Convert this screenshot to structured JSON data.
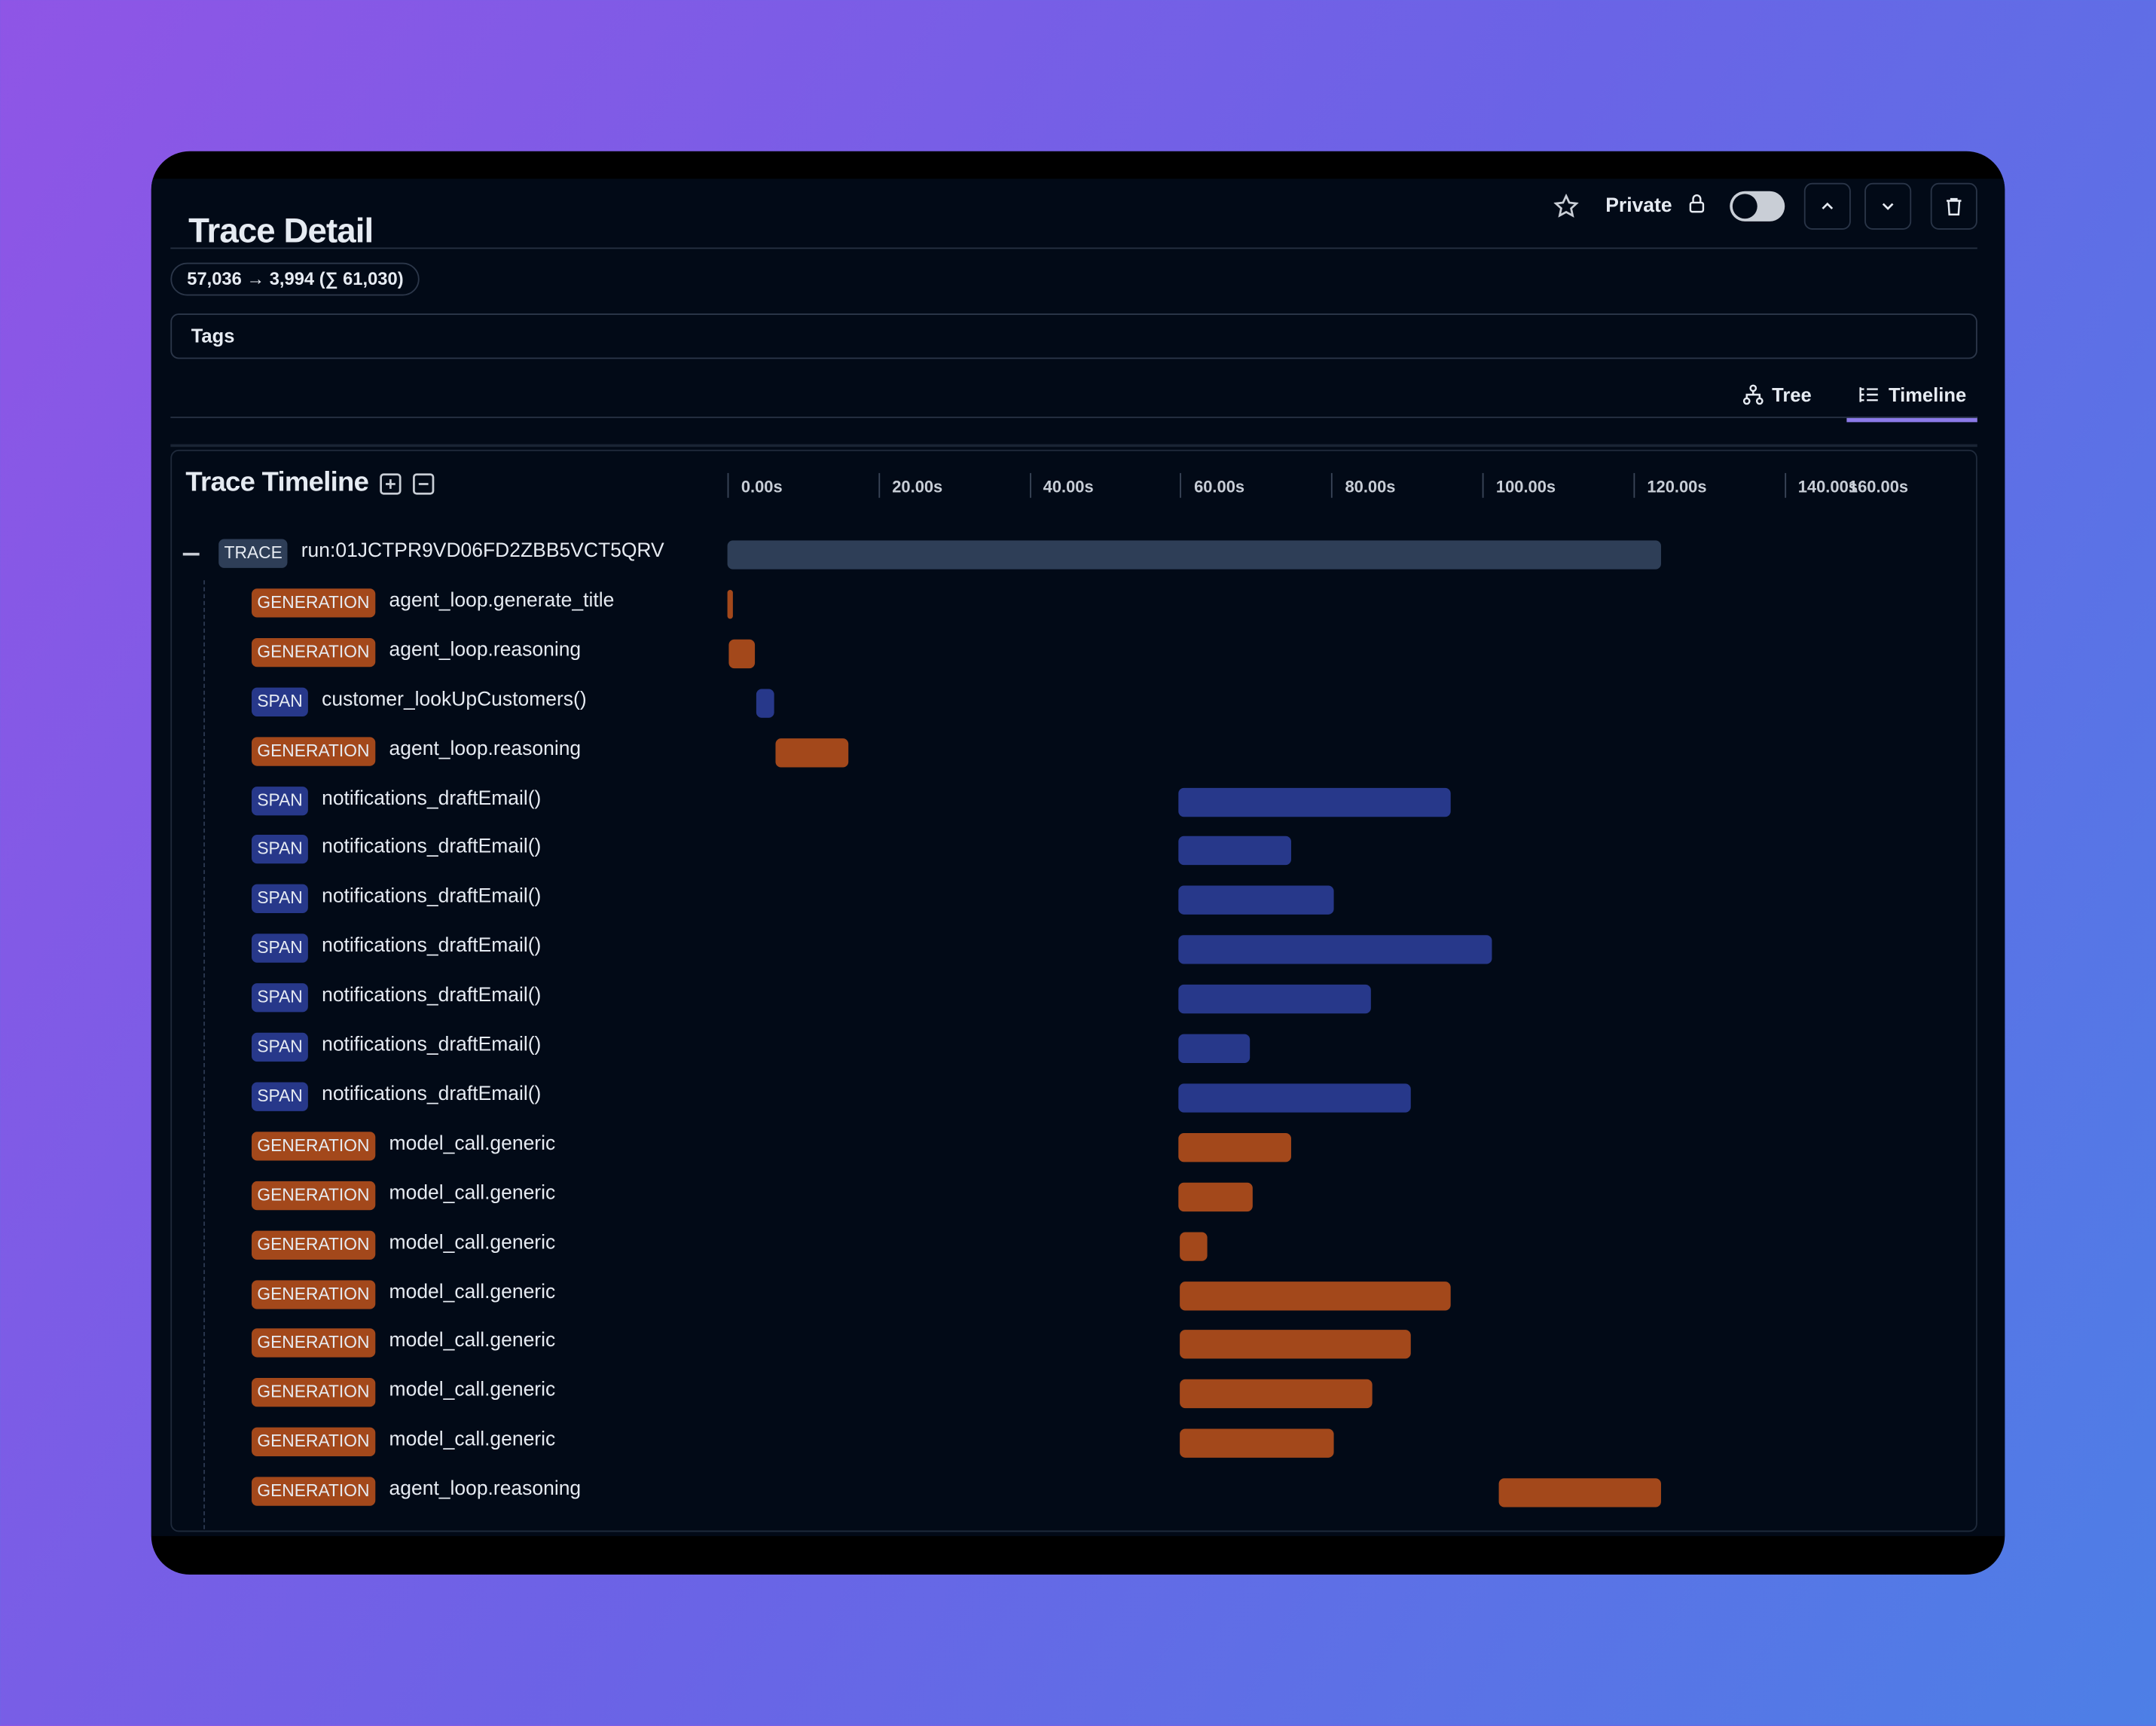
{
  "header": {
    "title": "Trace Detail",
    "private_label": "Private",
    "private_enabled": false,
    "icons": [
      "star-icon",
      "lock-icon",
      "chevron-up-icon",
      "chevron-down-icon",
      "trash-icon"
    ]
  },
  "tokens": "57,036 → 3,994 (∑ 61,030)",
  "tags_label": "Tags",
  "tabs": [
    {
      "label": "Tree",
      "icon": "tree-icon",
      "active": false
    },
    {
      "label": "Timeline",
      "icon": "timeline-icon",
      "active": true
    }
  ],
  "timeline": {
    "title": "Trace Timeline",
    "ticks": [
      "0.00s",
      "20.00s",
      "40.00s",
      "60.00s",
      "80.00s",
      "100.00s",
      "120.00s",
      "140.00s",
      "160.00s"
    ],
    "axis_max": 160,
    "colors": {
      "GENERATION": "#a3481b",
      "SPAN": "#27388a",
      "TRACE": "#2e3e57"
    },
    "rows": [
      {
        "type": "TRACE",
        "name": "run:01JCTPR9VD06FD2ZBB5VCT5QRV",
        "start": 0,
        "end": 123.7
      },
      {
        "type": "GENERATION",
        "name": "agent_loop.generate_title",
        "start": 0,
        "end": 0.7
      },
      {
        "type": "GENERATION",
        "name": "agent_loop.reasoning",
        "start": 0.2,
        "end": 3.6
      },
      {
        "type": "SPAN",
        "name": "customer_lookUpCustomers()",
        "start": 3.8,
        "end": 6.2
      },
      {
        "type": "GENERATION",
        "name": "agent_loop.reasoning",
        "start": 6.4,
        "end": 16.0
      },
      {
        "type": "SPAN",
        "name": "notifications_draftEmail()",
        "start": 59.7,
        "end": 95.8
      },
      {
        "type": "SPAN",
        "name": "notifications_draftEmail()",
        "start": 59.7,
        "end": 74.7
      },
      {
        "type": "SPAN",
        "name": "notifications_draftEmail()",
        "start": 59.7,
        "end": 80.3
      },
      {
        "type": "SPAN",
        "name": "notifications_draftEmail()",
        "start": 59.7,
        "end": 101.3
      },
      {
        "type": "SPAN",
        "name": "notifications_draftEmail()",
        "start": 59.7,
        "end": 85.2
      },
      {
        "type": "SPAN",
        "name": "notifications_draftEmail()",
        "start": 59.7,
        "end": 69.2
      },
      {
        "type": "SPAN",
        "name": "notifications_draftEmail()",
        "start": 59.7,
        "end": 90.5
      },
      {
        "type": "GENERATION",
        "name": "model_call.generic",
        "start": 59.8,
        "end": 74.7
      },
      {
        "type": "GENERATION",
        "name": "model_call.generic",
        "start": 59.8,
        "end": 69.6
      },
      {
        "type": "GENERATION",
        "name": "model_call.generic",
        "start": 59.9,
        "end": 63.6
      },
      {
        "type": "GENERATION",
        "name": "model_call.generic",
        "start": 59.9,
        "end": 95.8
      },
      {
        "type": "GENERATION",
        "name": "model_call.generic",
        "start": 59.9,
        "end": 90.5
      },
      {
        "type": "GENERATION",
        "name": "model_call.generic",
        "start": 59.9,
        "end": 85.4
      },
      {
        "type": "GENERATION",
        "name": "model_call.generic",
        "start": 59.9,
        "end": 80.3
      },
      {
        "type": "GENERATION",
        "name": "agent_loop.reasoning",
        "start": 102.1,
        "end": 123.7
      }
    ]
  }
}
